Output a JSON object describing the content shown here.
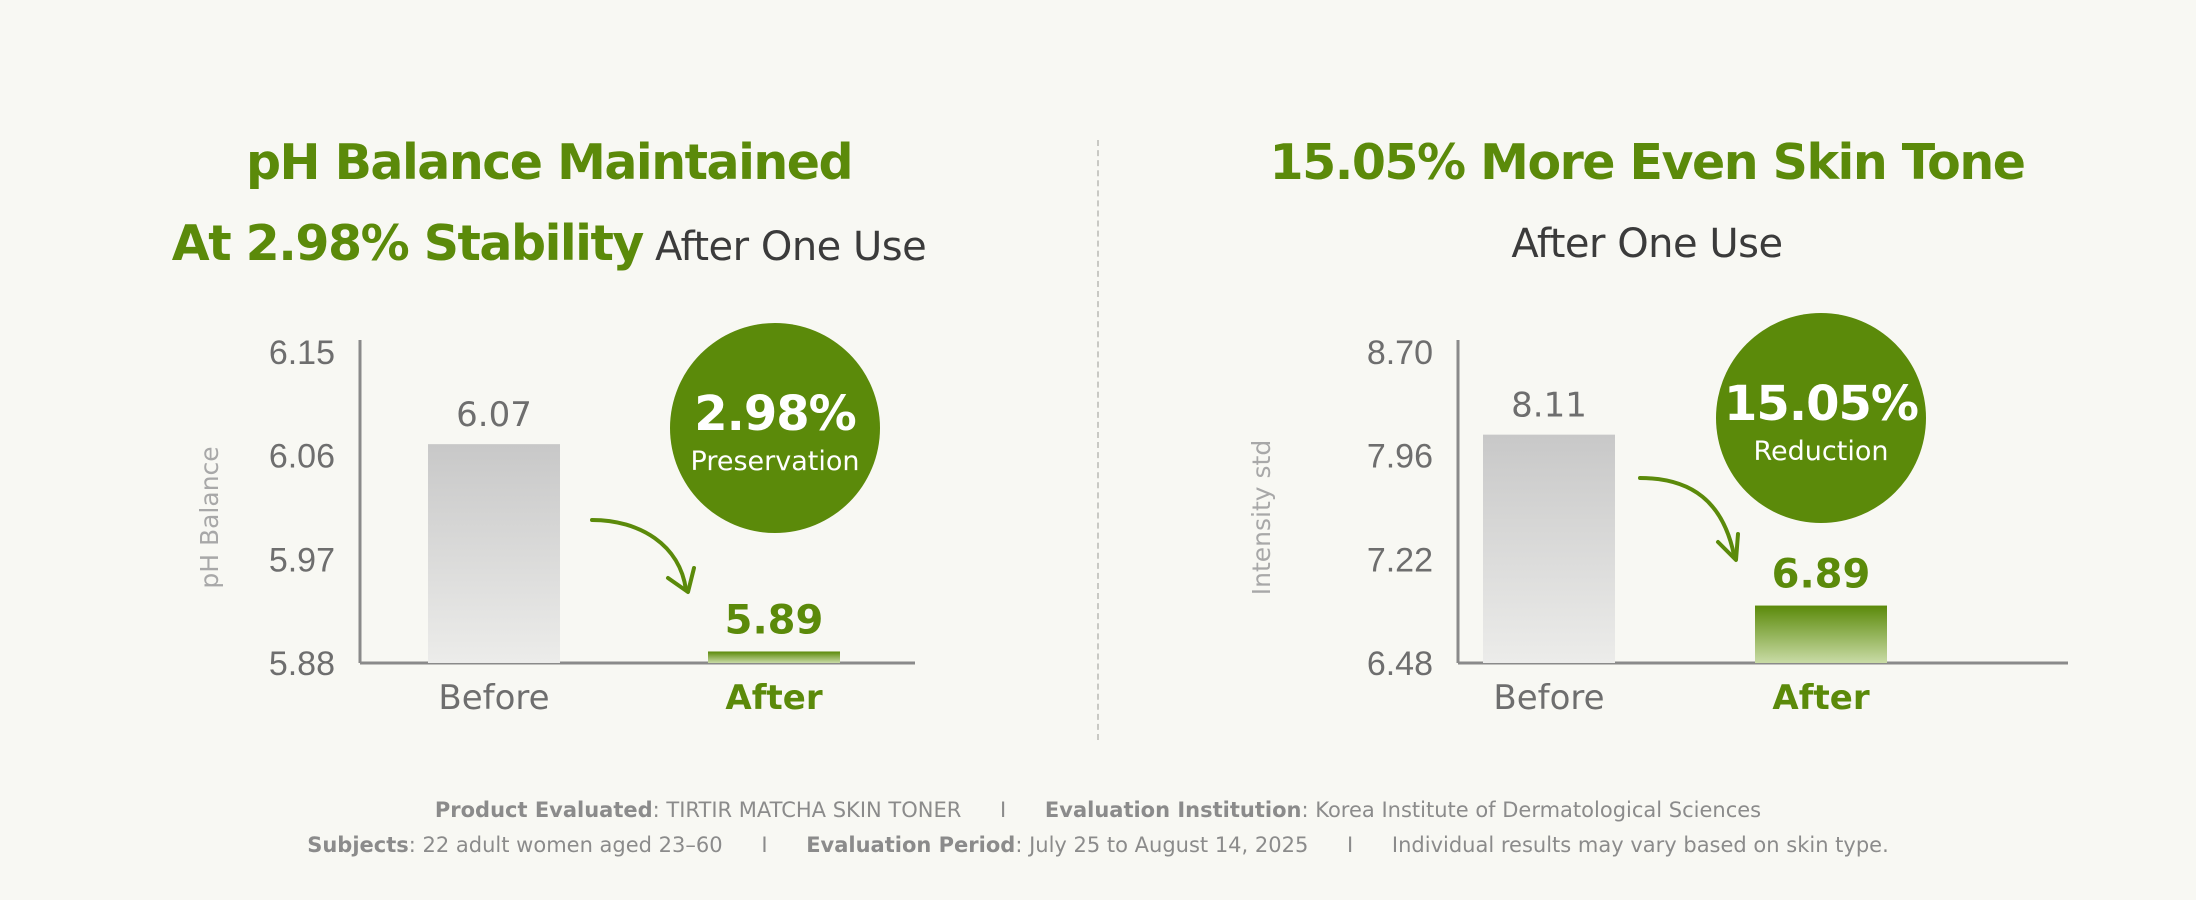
{
  "colors": {
    "accent": "#5b8a0a",
    "before_bar": "#cfcfcf",
    "axis": "#8a8a8a",
    "text_grey": "#6e6e6e"
  },
  "left": {
    "title_line1_green": "pH Balance Maintained",
    "title_line2_green": "At 2.98% Stability",
    "title_line2_grey": " After One Use"
  },
  "right": {
    "title_line1_green": "15.05% More Even Skin Tone",
    "title_line2_grey": "After One Use"
  },
  "chart_data": [
    {
      "type": "bar",
      "categories": [
        "Before",
        "After"
      ],
      "values": [
        6.07,
        5.89
      ],
      "value_labels": [
        "6.07",
        "5.89"
      ],
      "ylabel": "pH Balance",
      "ylim": [
        5.88,
        6.15
      ],
      "yticks": [
        5.88,
        5.97,
        6.06,
        6.15
      ],
      "ytick_labels": [
        "5.88",
        "5.97",
        "6.06",
        "6.15"
      ],
      "badge_value": "2.98%",
      "badge_label": "Preservation",
      "grid": false
    },
    {
      "type": "bar",
      "categories": [
        "Before",
        "After"
      ],
      "values": [
        8.11,
        6.89
      ],
      "value_labels": [
        "8.11",
        "6.89"
      ],
      "ylabel": "Intensity std",
      "ylim": [
        6.48,
        8.7
      ],
      "yticks": [
        6.48,
        7.22,
        7.96,
        8.7
      ],
      "ytick_labels": [
        "6.48",
        "7.22",
        "7.96",
        "8.70"
      ],
      "badge_value": "15.05%",
      "badge_label": "Reduction",
      "grid": false
    }
  ],
  "footer": {
    "line1": [
      {
        "label": "Product Evaluated",
        "value": ": TIRTIR MATCHA SKIN TONER"
      },
      {
        "label": "Evaluation Institution",
        "value": ": Korea Institute of Dermatological Sciences"
      }
    ],
    "line2": [
      {
        "label": "Subjects",
        "value": ": 22 adult women aged 23–60"
      },
      {
        "label": "Evaluation Period",
        "value": ": July 25 to August 14, 2025"
      },
      {
        "label": "",
        "value": "Individual results may vary based on skin type."
      }
    ],
    "separator": "I"
  }
}
